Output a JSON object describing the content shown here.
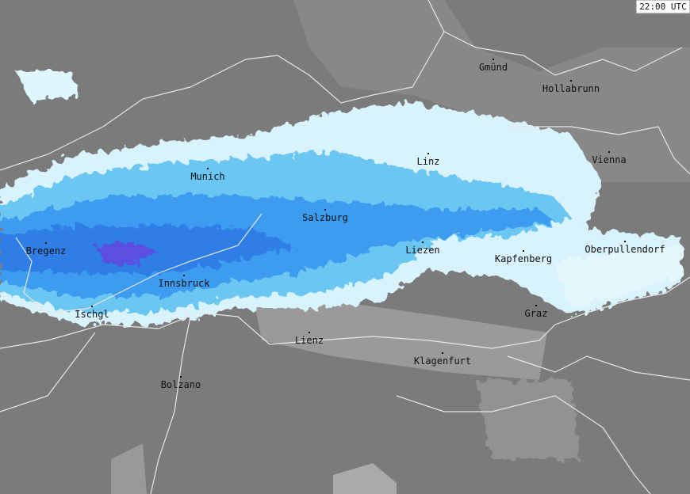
{
  "timestamp": "22:00 UTC",
  "cities": [
    "Gmünd",
    "Hollabrunn",
    "Linz",
    "Vienna",
    "Munich",
    "Salzburg",
    "Bregenz",
    "Liezen",
    "Kapfenberg",
    "Oberpullendorf",
    "Innsbruck",
    "Ischgl",
    "Graz",
    "Lienz",
    "Klagenfurt",
    "Bolzano"
  ]
}
